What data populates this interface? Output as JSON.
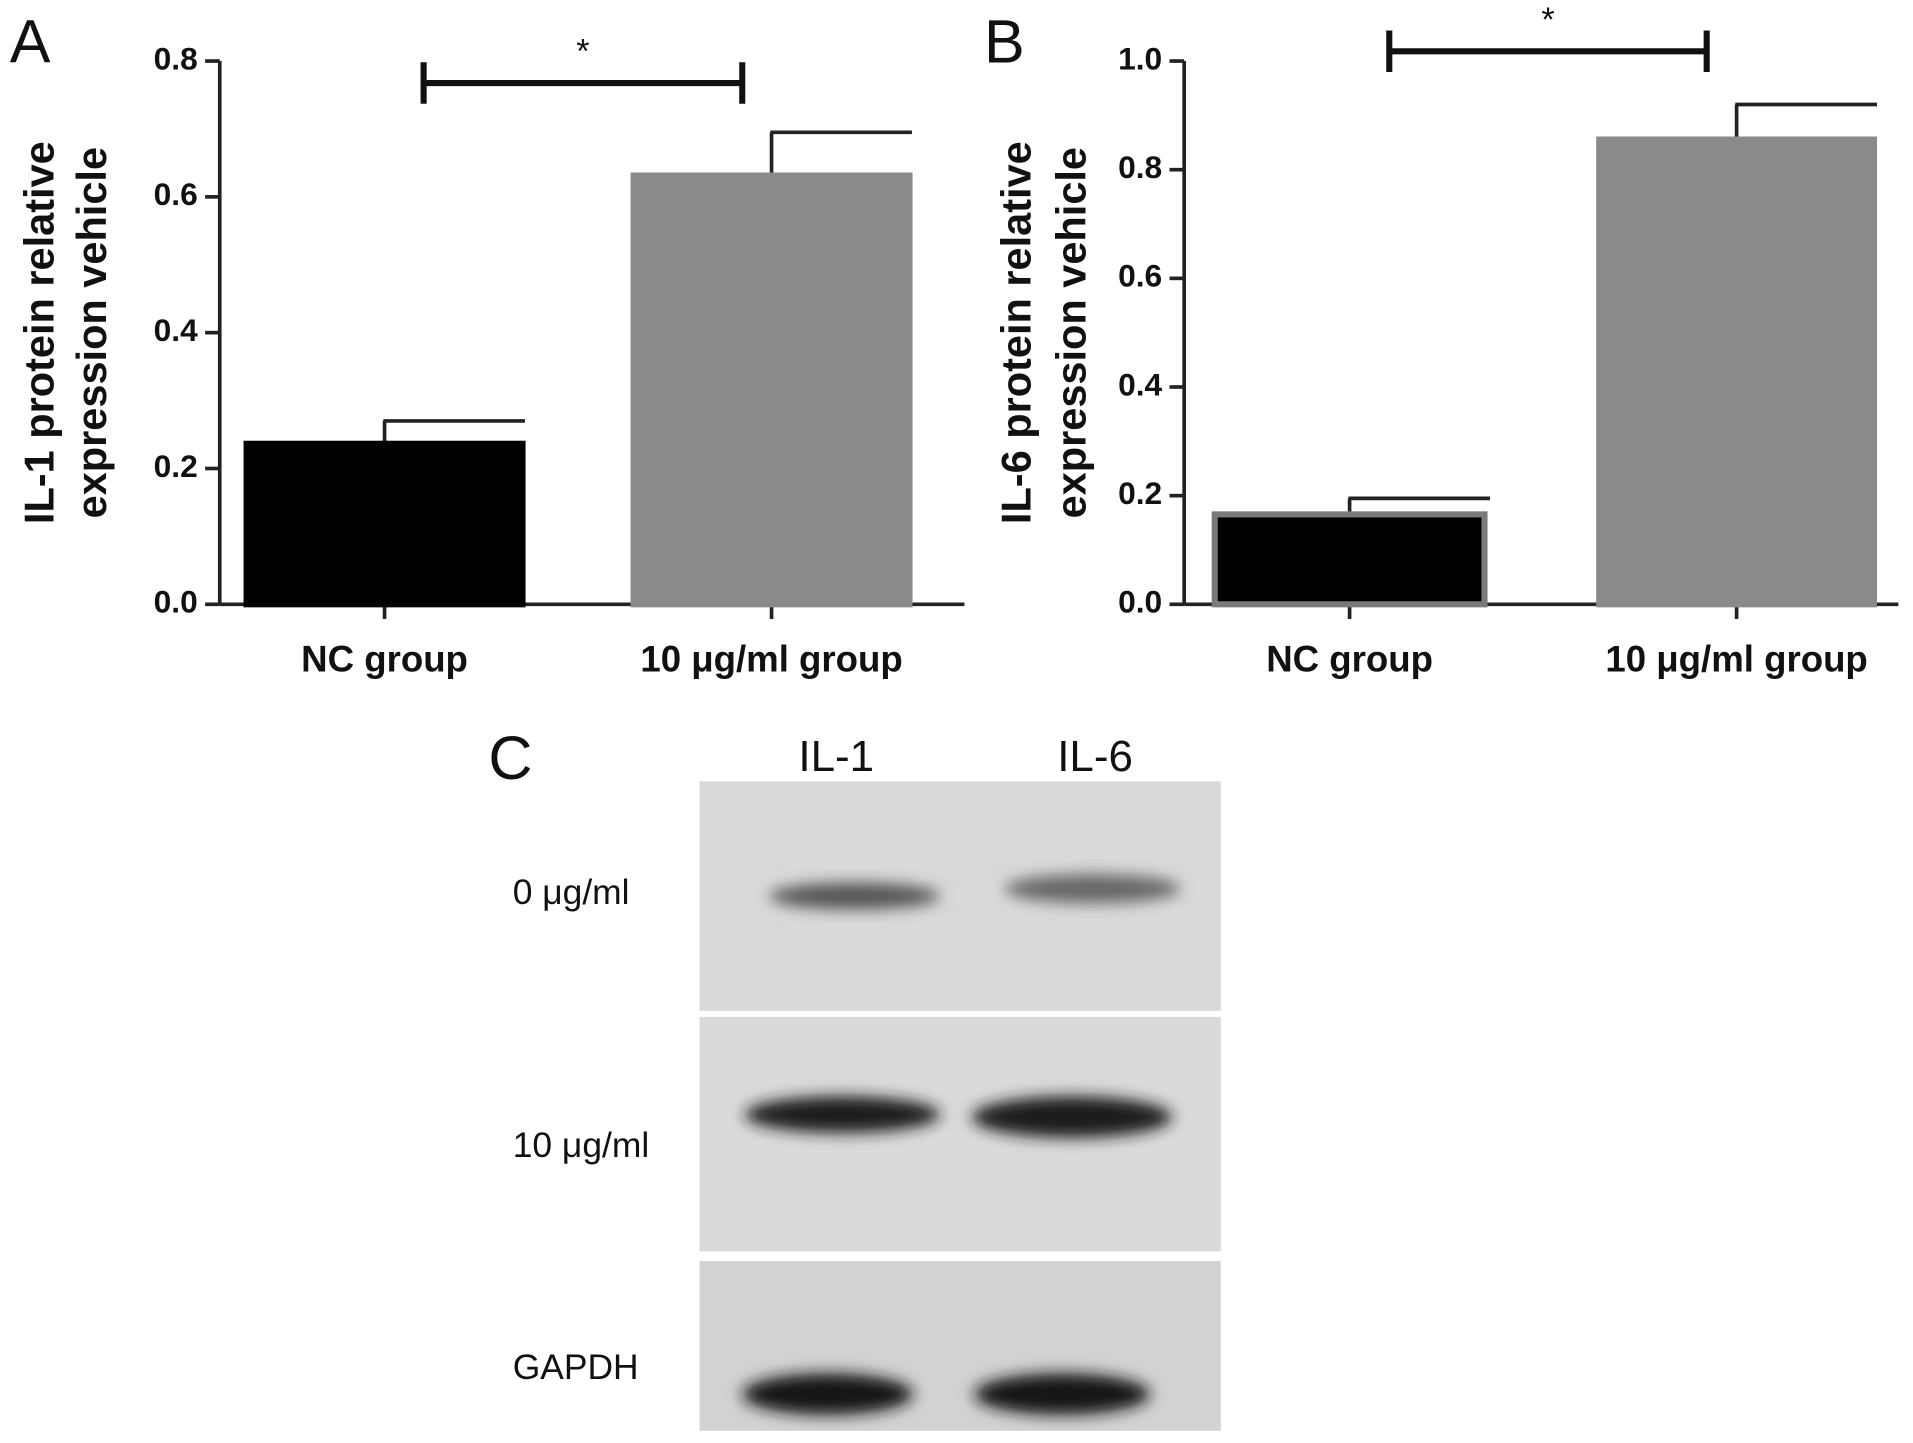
{
  "chart_data": [
    {
      "type": "bar",
      "panel": "A",
      "y_label": [
        "IL-1 protein relative",
        "expression vehicle"
      ],
      "categories": [
        "NC group",
        "10 μg/ml group"
      ],
      "values": [
        0.24,
        0.635
      ],
      "errors": [
        0.03,
        0.06
      ],
      "colors": [
        "#000000",
        "#8a8a8a"
      ],
      "edge_colors": [
        "#000000",
        "#8a8a8a"
      ],
      "ylim": [
        0,
        0.8
      ],
      "yticks": [
        {
          "value": 0,
          "label": "0.0"
        },
        0.2,
        0.4,
        0.6,
        0.8
      ],
      "significance": "*"
    },
    {
      "type": "bar",
      "panel": "B",
      "y_label": [
        "IL-6 protein relative",
        "expression vehicle"
      ],
      "categories": [
        "NC group",
        "10 μg/ml group"
      ],
      "values": [
        0.17,
        0.86
      ],
      "errors": [
        0.025,
        0.06
      ],
      "colors": [
        "#000000",
        "#8a8a8a"
      ],
      "edge_colors": [
        "#7a7a7a",
        "#8a8a8a"
      ],
      "ylim": [
        0,
        1.0
      ],
      "yticks": [
        {
          "value": 0,
          "label": "0.0"
        },
        0.2,
        0.4,
        0.6,
        0.8,
        {
          "value": 1.0,
          "label": "1.0"
        }
      ],
      "significance": "*"
    }
  ],
  "blot": {
    "panel": "C",
    "columns": [
      "IL-1",
      "IL-6"
    ],
    "rows": [
      "0 μg/ml",
      "10 μg/ml",
      "GAPDH"
    ]
  }
}
